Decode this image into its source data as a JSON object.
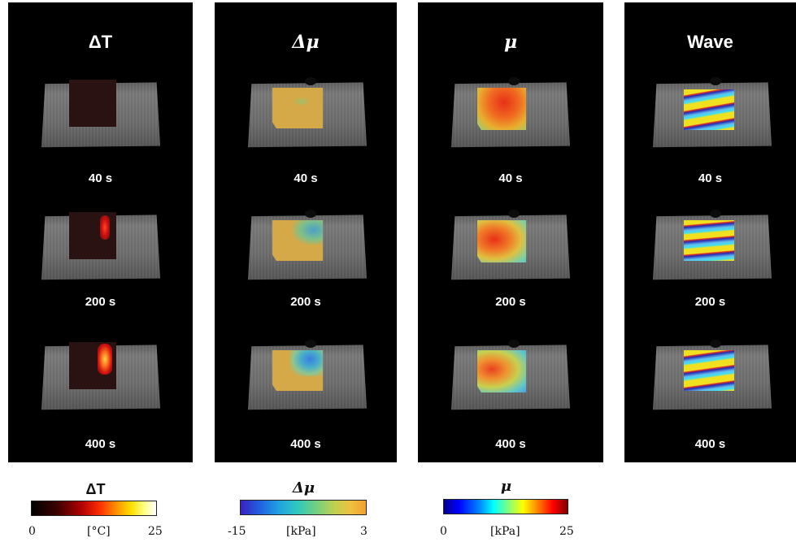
{
  "panels": [
    {
      "title": "ΔT",
      "times": [
        "40 s",
        "200 s",
        "400 s"
      ]
    },
    {
      "title": "Δμ",
      "times": [
        "40 s",
        "200 s",
        "400 s"
      ]
    },
    {
      "title": "μ",
      "times": [
        "40 s",
        "200 s",
        "400 s"
      ]
    },
    {
      "title": "Wave",
      "times": [
        "40 s",
        "200 s",
        "400 s"
      ]
    }
  ],
  "colorbars": [
    {
      "title": "ΔT",
      "min": "0",
      "unit": "[°C]",
      "max": "25",
      "colormap": "black-red-yellow-white"
    },
    {
      "title": "Δμ",
      "min": "-15",
      "unit": "[kPa]",
      "max": "3",
      "colormap": "blue-cyan-green-yellow-orange"
    },
    {
      "title": "μ",
      "min": "0",
      "unit": "[kPa]",
      "max": "25",
      "colormap": "jet"
    }
  ],
  "colors": {
    "panel_background": "#000000",
    "page_background": "#ffffff",
    "label_text": "#ffffff"
  }
}
